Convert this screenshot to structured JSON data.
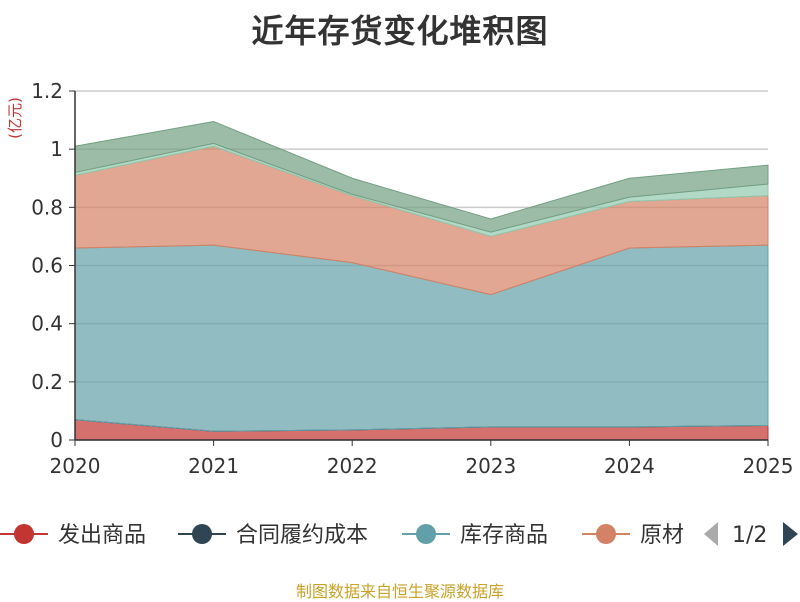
{
  "title": "近年存货变化堆积图",
  "footer": "制图数据来自恒生聚源数据库",
  "chart_data": {
    "type": "area",
    "stacked": true,
    "ylabel": "(亿元)",
    "x": [
      "2020",
      "2021",
      "2022",
      "2023",
      "2024",
      "2025"
    ],
    "ylim": [
      0,
      1.2
    ],
    "yticks": [
      "0",
      "0.2",
      "0.4",
      "0.6",
      "0.8",
      "1",
      "1.2"
    ],
    "grid": true,
    "series": [
      {
        "name": "发出商品",
        "color": "#c23531",
        "values": [
          0.07,
          0.03,
          0.035,
          0.045,
          0.045,
          0.05
        ]
      },
      {
        "name": "合同履约成本",
        "color": "#2f4554",
        "values": [
          0,
          0,
          0,
          0,
          0,
          0
        ]
      },
      {
        "name": "库存商品",
        "color": "#61a0a8",
        "values": [
          0.59,
          0.64,
          0.575,
          0.455,
          0.615,
          0.62
        ]
      },
      {
        "name": "原材料",
        "color": "#d48265",
        "values": [
          0.25,
          0.34,
          0.23,
          0.2,
          0.16,
          0.17
        ]
      },
      {
        "name": "",
        "color": "#91c7ae",
        "values": [
          0.01,
          0.01,
          0.005,
          0.015,
          0.015,
          0.04
        ]
      },
      {
        "name": "",
        "color": "#749f83",
        "values": [
          0.09,
          0.075,
          0.055,
          0.045,
          0.065,
          0.065
        ]
      }
    ]
  },
  "legend": {
    "visible_labels": [
      "发出商品",
      "合同履约成本",
      "库存商品",
      "原材"
    ],
    "page": "1/2"
  }
}
